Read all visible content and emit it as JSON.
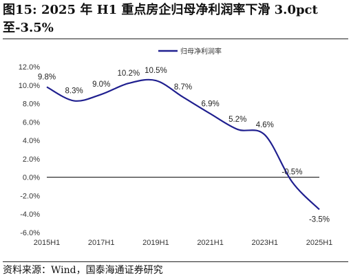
{
  "header": {
    "title": "图15: 2025 年 H1 重点房企归母净利润率下滑 3.0pct 至-3.5%"
  },
  "footer": {
    "source": "资料来源：Wind，国泰海通证券研究"
  },
  "chart_data": {
    "type": "line",
    "title": "图15: 2025 年 H1 重点房企归母净利润率下滑 3.0pct 至-3.5%",
    "xlabel": "",
    "ylabel": "",
    "x": [
      "2015H1",
      "2015H2",
      "2016H1",
      "2016H2",
      "2017H1",
      "2017H2",
      "2018H1",
      "2018H2",
      "2019H1",
      "2019H2",
      "2020H1",
      "2020H2",
      "2021H1",
      "2021H2",
      "2022H1",
      "2022H2",
      "2023H1",
      "2023H2",
      "2024H1",
      "2024H2",
      "2025H1"
    ],
    "x_tick_labels": [
      "2015H1",
      "2017H1",
      "2019H1",
      "2021H1",
      "2023H1",
      "2025H1"
    ],
    "y_tick_labels": [
      "12.0%",
      "10.0%",
      "8.0%",
      "6.0%",
      "4.0%",
      "2.0%",
      "0.0%",
      "-2.0%",
      "-4.0%",
      "-6.0%"
    ],
    "ylim": [
      -6,
      12
    ],
    "grid": false,
    "legend_position": "top-center",
    "series": [
      {
        "name": "归母净利润率",
        "color": "#1f1f8f",
        "values": [
          9.8,
          null,
          8.3,
          null,
          9.0,
          null,
          10.2,
          null,
          10.5,
          null,
          8.7,
          null,
          6.9,
          null,
          5.2,
          null,
          4.6,
          null,
          -0.5,
          null,
          -3.5
        ],
        "data_labels": [
          "9.8%",
          "8.3%",
          "9.0%",
          "10.2%",
          "10.5%",
          "8.7%",
          "6.9%",
          "5.2%",
          "4.6%",
          "-0.5%",
          "-3.5%"
        ]
      }
    ]
  }
}
